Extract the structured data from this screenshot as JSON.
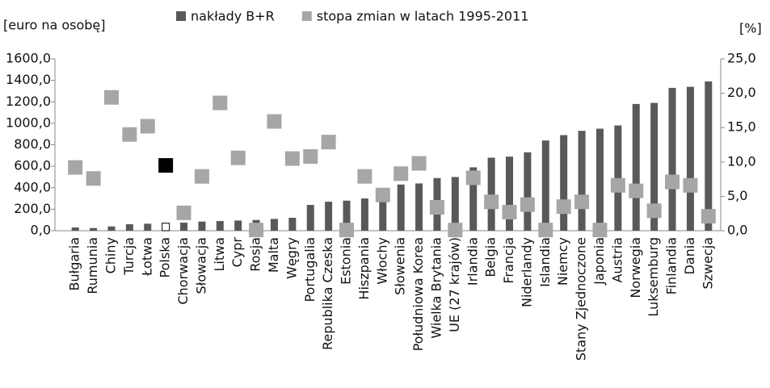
{
  "chart_data": {
    "type": "bar_marker",
    "y_label": "[euro na osobę]",
    "y2_label": "[%]",
    "categories": [
      "Bułgaria",
      "Rumunia",
      "Chiny",
      "Turcja",
      "Łotwa",
      "Polska",
      "Chorwacja",
      "Słowacja",
      "Litwa",
      "Cypr",
      "Rosja",
      "Malta",
      "Węgry",
      "Portugalia",
      "Republika Czeska",
      "Estonia",
      "Hiszpania",
      "Włochy",
      "Słowenia",
      "Południowa Korea",
      "Wielka Brytania",
      "UE (27 krajów)",
      "Irlandia",
      "Belgia",
      "Francja",
      "Niderlandy",
      "Islandia",
      "Niemcy",
      "Stany Zjednoczone",
      "Japonia",
      "Austria",
      "Norwegia",
      "Luksemburg",
      "Finlandia",
      "Dania",
      "Szwecja"
    ],
    "series": [
      {
        "name": "nakłady B+R",
        "color": "#595959",
        "values": [
          30,
          25,
          40,
          60,
          65,
          70,
          75,
          85,
          90,
          95,
          100,
          110,
          120,
          240,
          270,
          280,
          300,
          330,
          430,
          440,
          490,
          500,
          590,
          680,
          690,
          730,
          840,
          890,
          930,
          950,
          980,
          1180,
          1190,
          1330,
          1340,
          1390
        ]
      },
      {
        "name": "stopa zmian w latach 1995-2011",
        "color": "#a6a6a6",
        "axis": "y2",
        "values": [
          9.2,
          7.6,
          19.4,
          14.0,
          15.2,
          9.5,
          2.6,
          7.9,
          18.6,
          10.6,
          0.1,
          15.9,
          10.5,
          10.8,
          12.9,
          0.1,
          7.9,
          5.2,
          8.3,
          9.8,
          3.4,
          0.1,
          7.7,
          4.2,
          2.7,
          3.8,
          0.1,
          3.5,
          4.2,
          0.1,
          6.6,
          5.8,
          2.9,
          7.1,
          6.6,
          2.1
        ]
      }
    ],
    "highlight": {
      "index": 5,
      "bar_fill": "#ffffff",
      "marker_fill": "#000000"
    },
    "ylim": [
      0,
      1600
    ],
    "yticks": [
      {
        "value": 0,
        "label": "0,0"
      },
      {
        "value": 200,
        "label": "200,0"
      },
      {
        "value": 400,
        "label": "400,0"
      },
      {
        "value": 600,
        "label": "600,0"
      },
      {
        "value": 800,
        "label": "800,0"
      },
      {
        "value": 1000,
        "label": "1000,0"
      },
      {
        "value": 1200,
        "label": "1200,0"
      },
      {
        "value": 1400,
        "label": "1400,0"
      },
      {
        "value": 1600,
        "label": "1600,0"
      }
    ],
    "y2lim": [
      0,
      25
    ],
    "y2ticks": [
      {
        "value": 0,
        "label": "0,0"
      },
      {
        "value": 5,
        "label": "5,0"
      },
      {
        "value": 10,
        "label": "10,0"
      },
      {
        "value": 15,
        "label": "15,0"
      },
      {
        "value": 20,
        "label": "20,0"
      },
      {
        "value": 25,
        "label": "25,0"
      }
    ],
    "legend": "top"
  }
}
